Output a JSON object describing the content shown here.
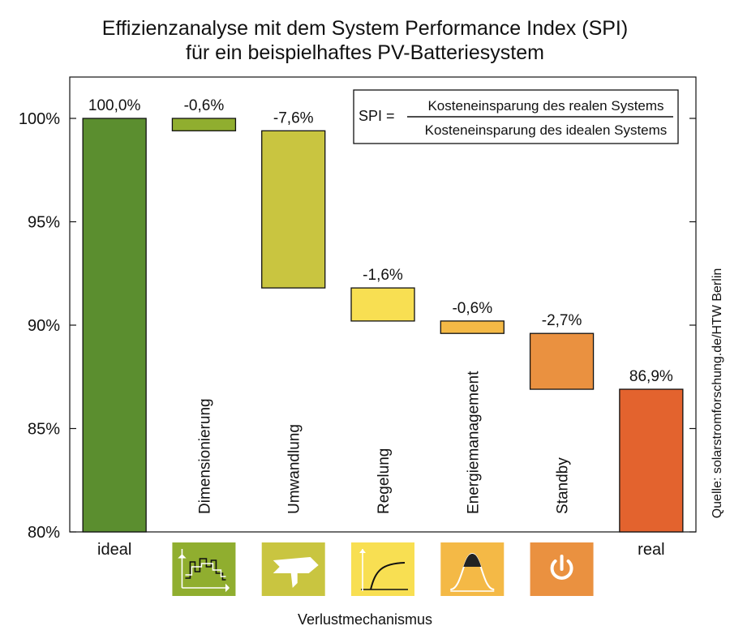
{
  "chart_data": {
    "type": "bar",
    "subtype": "waterfall",
    "title_line1": "Effizienzanalyse mit dem System Performance Index (SPI)",
    "title_line2": "für ein beispielhaftes PV-Batteriesystem",
    "xlabel": "Verlustmechanismus",
    "ylim": [
      80,
      102
    ],
    "y_ticks": [
      80,
      85,
      90,
      95,
      100
    ],
    "y_tick_labels": [
      "80%",
      "85%",
      "90%",
      "95%",
      "100%"
    ],
    "grid": false,
    "bars": [
      {
        "category": "ideal",
        "start": 80,
        "end": 100,
        "label": "100,0%",
        "color": "#5b8e2f",
        "rotated_label": false,
        "icon": "none"
      },
      {
        "category": "Dimensionierung",
        "start": 100,
        "end": 99.4,
        "label": "-0,6%",
        "color": "#90ae2f",
        "rotated_label": true,
        "icon": "profile-icon"
      },
      {
        "category": "Umwandlung",
        "start": 99.4,
        "end": 91.8,
        "label": "-7,6%",
        "color": "#c9c540",
        "rotated_label": true,
        "icon": "arrow-icon"
      },
      {
        "category": "Regelung",
        "start": 91.8,
        "end": 90.2,
        "label": "-1,6%",
        "color": "#f8df52",
        "rotated_label": true,
        "icon": "curve-icon"
      },
      {
        "category": "Energiemanagement",
        "start": 90.2,
        "end": 89.6,
        "label": "-0,6%",
        "color": "#f4b946",
        "rotated_label": true,
        "icon": "bell-curve-icon"
      },
      {
        "category": "Standby",
        "start": 89.6,
        "end": 86.9,
        "label": "-2,7%",
        "color": "#ea9140",
        "rotated_label": true,
        "icon": "power-icon"
      },
      {
        "category": "real",
        "start": 80,
        "end": 86.9,
        "label": "86,9%",
        "color": "#e3632e",
        "rotated_label": false,
        "icon": "none"
      }
    ],
    "formula": {
      "lhs": "SPI =",
      "numerator": "Kosteneinsparung des realen Systems",
      "denominator": "Kosteneinsparung des idealen Systems"
    },
    "source_note": "Quelle: solarstromforschung.de/HTW Berlin",
    "icon_colors": {
      "profile-icon": "#90ae2f",
      "arrow-icon": "#c9c540",
      "curve-icon": "#f8df52",
      "bell-curve-icon": "#f4b946",
      "power-icon": "#ea9140"
    }
  }
}
